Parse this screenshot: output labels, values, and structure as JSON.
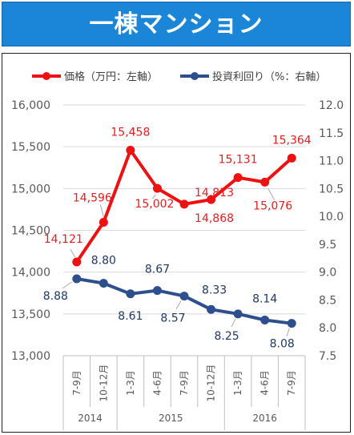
{
  "title": "一棟マンション",
  "chart_data": {
    "type": "line",
    "categories": [
      "7-9月",
      "10-12月",
      "1-3月",
      "4-6月",
      "7-9月",
      "10-12月",
      "1-3月",
      "4-6月",
      "7-9月"
    ],
    "years": [
      {
        "label": "2014",
        "span": 2
      },
      {
        "label": "2015",
        "span": 4
      },
      {
        "label": "2016",
        "span": 3
      }
    ],
    "series": [
      {
        "name": "価格（万円：左軸）",
        "axis": "left",
        "color": "#ee1111",
        "values": [
          14121,
          14596,
          15458,
          15002,
          14813,
          14868,
          15131,
          15076,
          15364
        ]
      },
      {
        "name": "投資利回り（%：右軸）",
        "axis": "right",
        "color": "#2d4f8e",
        "values": [
          8.88,
          8.8,
          8.61,
          8.67,
          8.57,
          8.33,
          8.25,
          8.14,
          8.08
        ]
      }
    ],
    "left_axis": {
      "min": 13000,
      "max": 16000,
      "step": 500,
      "ticks": [
        "13,000",
        "13,500",
        "14,000",
        "14,500",
        "15,000",
        "15,500",
        "16,000"
      ]
    },
    "right_axis": {
      "min": 7.5,
      "max": 12.0,
      "step": 0.5,
      "ticks": [
        "7.5",
        "8.0",
        "8.5",
        "9.0",
        "9.5",
        "10.0",
        "10.5",
        "11.0",
        "11.5",
        "12.0"
      ]
    },
    "price_labels": [
      "14,121",
      "14,596",
      "15,458",
      "15,002",
      "14,813",
      "14,868",
      "15,131",
      "15,076",
      "15,364"
    ],
    "yield_labels": [
      "8.88",
      "8.80",
      "8.61",
      "8.67",
      "8.57",
      "8.33",
      "8.25",
      "8.14",
      "8.08"
    ],
    "grid": "horizontal",
    "legend": "top"
  }
}
